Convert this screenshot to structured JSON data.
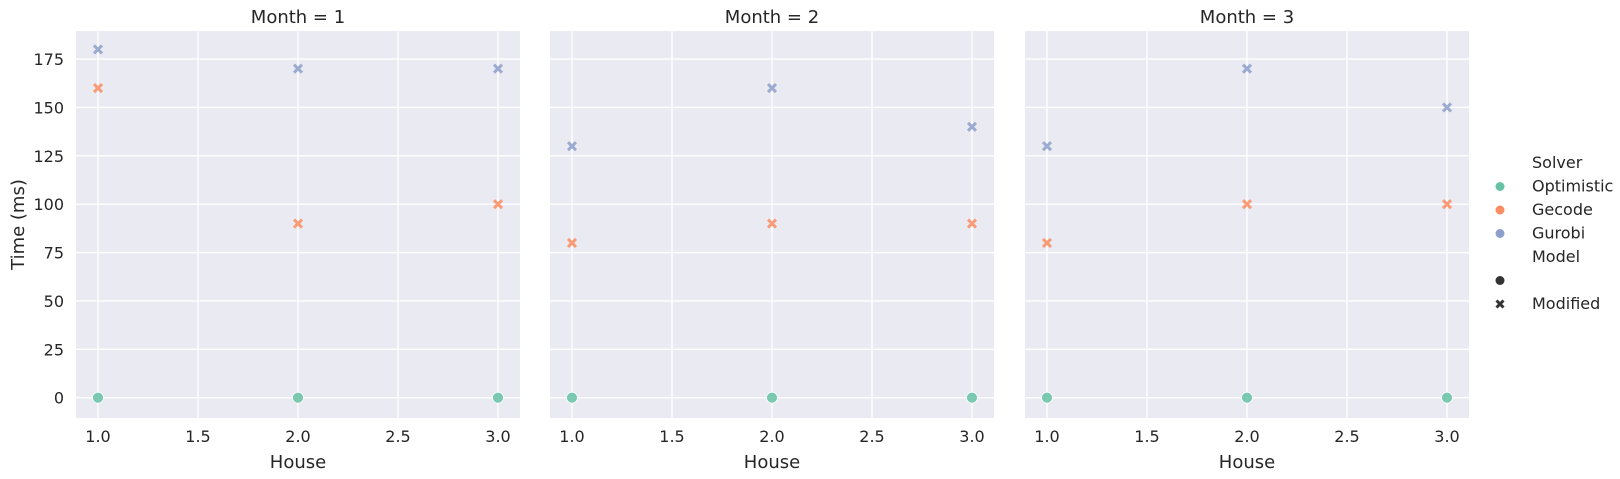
{
  "chart_data": {
    "type": "scatter",
    "facet_variable": "Month",
    "facets": [
      {
        "title": "Month = 1",
        "points": [
          {
            "solver": "Optimistic",
            "model": "",
            "x": 1.0,
            "y": 0
          },
          {
            "solver": "Optimistic",
            "model": "",
            "x": 2.0,
            "y": 0
          },
          {
            "solver": "Optimistic",
            "model": "",
            "x": 3.0,
            "y": 0
          },
          {
            "solver": "Gecode",
            "model": "Modified",
            "x": 1.0,
            "y": 160
          },
          {
            "solver": "Gecode",
            "model": "Modified",
            "x": 2.0,
            "y": 90
          },
          {
            "solver": "Gecode",
            "model": "Modified",
            "x": 3.0,
            "y": 100
          },
          {
            "solver": "Gurobi",
            "model": "Modified",
            "x": 1.0,
            "y": 180
          },
          {
            "solver": "Gurobi",
            "model": "Modified",
            "x": 2.0,
            "y": 170
          },
          {
            "solver": "Gurobi",
            "model": "Modified",
            "x": 3.0,
            "y": 170
          }
        ]
      },
      {
        "title": "Month = 2",
        "points": [
          {
            "solver": "Optimistic",
            "model": "",
            "x": 1.0,
            "y": 0
          },
          {
            "solver": "Optimistic",
            "model": "",
            "x": 2.0,
            "y": 0
          },
          {
            "solver": "Optimistic",
            "model": "",
            "x": 3.0,
            "y": 0
          },
          {
            "solver": "Gecode",
            "model": "Modified",
            "x": 1.0,
            "y": 80
          },
          {
            "solver": "Gecode",
            "model": "Modified",
            "x": 2.0,
            "y": 90
          },
          {
            "solver": "Gecode",
            "model": "Modified",
            "x": 3.0,
            "y": 90
          },
          {
            "solver": "Gurobi",
            "model": "Modified",
            "x": 1.0,
            "y": 130
          },
          {
            "solver": "Gurobi",
            "model": "Modified",
            "x": 2.0,
            "y": 160
          },
          {
            "solver": "Gurobi",
            "model": "Modified",
            "x": 3.0,
            "y": 140
          }
        ]
      },
      {
        "title": "Month = 3",
        "points": [
          {
            "solver": "Optimistic",
            "model": "",
            "x": 1.0,
            "y": 0
          },
          {
            "solver": "Optimistic",
            "model": "",
            "x": 2.0,
            "y": 0
          },
          {
            "solver": "Optimistic",
            "model": "",
            "x": 3.0,
            "y": 0
          },
          {
            "solver": "Gecode",
            "model": "Modified",
            "x": 1.0,
            "y": 80
          },
          {
            "solver": "Gecode",
            "model": "Modified",
            "x": 2.0,
            "y": 100
          },
          {
            "solver": "Gecode",
            "model": "Modified",
            "x": 3.0,
            "y": 100
          },
          {
            "solver": "Gurobi",
            "model": "Modified",
            "x": 1.0,
            "y": 130
          },
          {
            "solver": "Gurobi",
            "model": "Modified",
            "x": 2.0,
            "y": 170
          },
          {
            "solver": "Gurobi",
            "model": "Modified",
            "x": 3.0,
            "y": 150
          }
        ]
      }
    ],
    "xlabel": "House",
    "ylabel": "Time (ms)",
    "xlim": [
      0.89,
      3.11
    ],
    "ylim": [
      -10.5,
      189.5
    ],
    "xticks": [
      1.0,
      1.5,
      2.0,
      2.5,
      3.0
    ],
    "xtick_labels": [
      "1.0",
      "1.5",
      "2.0",
      "2.5",
      "3.0"
    ],
    "yticks": [
      0,
      25,
      50,
      75,
      100,
      125,
      150,
      175
    ],
    "ytick_labels": [
      "0",
      "25",
      "50",
      "75",
      "100",
      "125",
      "150",
      "175"
    ],
    "grid": true,
    "legend": {
      "placement": "right",
      "hue_title": "Solver",
      "hue_entries": [
        {
          "label": "Optimistic",
          "color": "#66c2a5"
        },
        {
          "label": "Gecode",
          "color": "#fc8d62"
        },
        {
          "label": "Gurobi",
          "color": "#8da0cb"
        }
      ],
      "style_title": "Model",
      "style_entries": [
        {
          "label": "",
          "marker": "circle"
        },
        {
          "label": "Modified",
          "marker": "x"
        }
      ]
    }
  }
}
